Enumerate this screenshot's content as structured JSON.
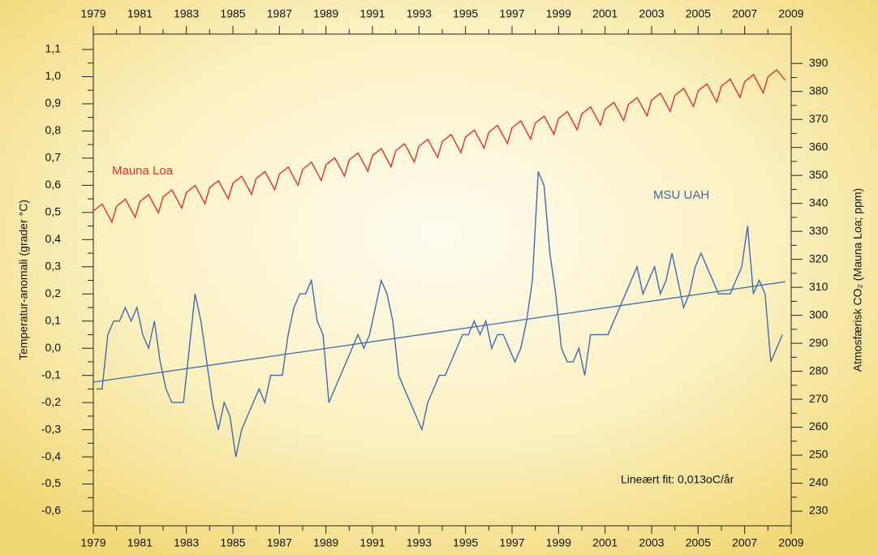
{
  "chart_data": {
    "type": "line",
    "xlim": [
      1979,
      2009
    ],
    "xticks": [
      1979,
      1981,
      1983,
      1985,
      1987,
      1989,
      1991,
      1993,
      1995,
      1997,
      1999,
      2001,
      2003,
      2005,
      2007,
      2009
    ],
    "ylim": [
      -0.6,
      1.1
    ],
    "yticks": [
      {
        "value": -0.6,
        "label": "-0,6"
      },
      {
        "value": -0.5,
        "label": "-0,5"
      },
      {
        "value": -0.4,
        "label": "-0,4"
      },
      {
        "value": -0.3,
        "label": "-0,3"
      },
      {
        "value": -0.2,
        "label": "-0,2"
      },
      {
        "value": -0.1,
        "label": "-0,1"
      },
      {
        "value": 0,
        "label": "0,0"
      },
      {
        "value": 0.1,
        "label": "0,1"
      },
      {
        "value": 0.2,
        "label": "0,2"
      },
      {
        "value": 0.3,
        "label": "0,3"
      },
      {
        "value": 0.4,
        "label": "0,4"
      },
      {
        "value": 0.5,
        "label": "0,5"
      },
      {
        "value": 0.6,
        "label": "0,6"
      },
      {
        "value": 0.7,
        "label": "0,7"
      },
      {
        "value": 0.8,
        "label": "0,8"
      },
      {
        "value": 0.9,
        "label": "0,9"
      },
      {
        "value": 1.0,
        "label": "1,0"
      },
      {
        "value": 1.1,
        "label": "1,1"
      }
    ],
    "y2lim": [
      230,
      395
    ],
    "y2ticks": [
      230,
      240,
      250,
      260,
      270,
      280,
      290,
      300,
      310,
      320,
      330,
      340,
      350,
      360,
      370,
      380,
      390
    ],
    "ylabel": "Temperatur-anomali (grader °C)",
    "y2label": "Atmosfærisk CO₂ (Mauna Loa; ppm)",
    "annotation": "Lineært fit: 0,013oC/år",
    "series": [
      {
        "name": "Mauna Loa",
        "color": "#e03226",
        "axis": "y2",
        "x": [
          1979,
          1979.38,
          1979.8,
          1980,
          1980.38,
          1980.8,
          1981,
          1981.38,
          1981.8,
          1982,
          1982.38,
          1982.8,
          1983,
          1983.38,
          1983.8,
          1984,
          1984.38,
          1984.8,
          1985,
          1985.38,
          1985.8,
          1986,
          1986.38,
          1986.8,
          1987,
          1987.38,
          1987.8,
          1988,
          1988.38,
          1988.8,
          1989,
          1989.38,
          1989.8,
          1990,
          1990.38,
          1990.8,
          1991,
          1991.38,
          1991.8,
          1992,
          1992.38,
          1992.8,
          1993,
          1993.38,
          1993.8,
          1994,
          1994.38,
          1994.8,
          1995,
          1995.38,
          1995.8,
          1996,
          1996.38,
          1996.8,
          1997,
          1997.38,
          1997.8,
          1998,
          1998.38,
          1998.8,
          1999,
          1999.38,
          1999.8,
          2000,
          2000.38,
          2000.8,
          2001,
          2001.38,
          2001.8,
          2002,
          2002.38,
          2002.8,
          2003,
          2003.38,
          2003.8,
          2004,
          2004.38,
          2004.8,
          2005,
          2005.38,
          2005.8,
          2006,
          2006.38,
          2006.8,
          2007,
          2007.38,
          2007.8,
          2008,
          2008.38,
          2008.75
        ],
        "values": [
          337.3,
          339.8,
          333.3,
          339.0,
          341.5,
          335.0,
          340.6,
          343.1,
          336.6,
          342.3,
          344.8,
          338.3,
          343.9,
          346.4,
          339.9,
          345.6,
          348.1,
          341.6,
          347.2,
          349.7,
          343.2,
          348.9,
          351.4,
          344.9,
          350.5,
          353.0,
          346.5,
          352.2,
          354.7,
          348.2,
          353.8,
          356.3,
          349.8,
          355.5,
          358.0,
          351.5,
          357.1,
          359.6,
          353.1,
          358.8,
          361.3,
          354.8,
          360.4,
          362.9,
          356.4,
          362.1,
          364.6,
          358.1,
          363.7,
          366.2,
          359.7,
          365.4,
          367.9,
          361.4,
          367.0,
          369.5,
          363.0,
          368.7,
          371.2,
          364.7,
          370.3,
          372.8,
          366.3,
          372.0,
          374.5,
          368.0,
          373.6,
          376.1,
          369.6,
          375.3,
          377.8,
          371.3,
          376.9,
          379.4,
          372.9,
          378.6,
          381.1,
          374.6,
          380.2,
          382.7,
          376.2,
          381.9,
          384.4,
          377.9,
          383.5,
          386.0,
          379.5,
          385.2,
          387.7,
          384.0
        ]
      },
      {
        "name": "MSU UAH",
        "color": "#3d6cb0",
        "axis": "y",
        "x": [
          1979.125,
          1979.375,
          1979.625,
          1979.875,
          1980.125,
          1980.375,
          1980.625,
          1980.875,
          1981.125,
          1981.375,
          1981.625,
          1981.875,
          1982.125,
          1982.375,
          1982.625,
          1982.875,
          1983.125,
          1983.375,
          1983.625,
          1983.875,
          1984.125,
          1984.375,
          1984.625,
          1984.875,
          1985.125,
          1985.375,
          1985.625,
          1985.875,
          1986.125,
          1986.375,
          1986.625,
          1986.875,
          1987.125,
          1987.375,
          1987.625,
          1987.875,
          1988.125,
          1988.375,
          1988.625,
          1988.875,
          1989.125,
          1989.375,
          1989.625,
          1989.875,
          1990.125,
          1990.375,
          1990.625,
          1990.875,
          1991.125,
          1991.375,
          1991.625,
          1991.875,
          1992.125,
          1992.375,
          1992.625,
          1992.875,
          1993.125,
          1993.375,
          1993.625,
          1993.875,
          1994.125,
          1994.375,
          1994.625,
          1994.875,
          1995.125,
          1995.375,
          1995.625,
          1995.875,
          1996.125,
          1996.375,
          1996.625,
          1996.875,
          1997.125,
          1997.375,
          1997.625,
          1997.875,
          1998.125,
          1998.375,
          1998.625,
          1998.875,
          1999.125,
          1999.375,
          1999.625,
          1999.875,
          2000.125,
          2000.375,
          2000.625,
          2000.875,
          2001.125,
          2001.375,
          2001.625,
          2001.875,
          2002.125,
          2002.375,
          2002.625,
          2002.875,
          2003.125,
          2003.375,
          2003.625,
          2003.875,
          2004.125,
          2004.375,
          2004.625,
          2004.875,
          2005.125,
          2005.375,
          2005.625,
          2005.875,
          2006.125,
          2006.375,
          2006.625,
          2006.875,
          2007.125,
          2007.375,
          2007.625,
          2007.875,
          2008.125,
          2008.375,
          2008.625
        ],
        "values": [
          -0.15,
          -0.15,
          0.05,
          0.1,
          0.1,
          0.15,
          0.1,
          0.15,
          0.05,
          0.0,
          0.1,
          -0.05,
          -0.15,
          -0.2,
          -0.2,
          -0.2,
          0.0,
          0.2,
          0.1,
          -0.05,
          -0.2,
          -0.3,
          -0.2,
          -0.25,
          -0.4,
          -0.3,
          -0.25,
          -0.2,
          -0.15,
          -0.2,
          -0.1,
          -0.1,
          -0.1,
          0.05,
          0.15,
          0.2,
          0.2,
          0.25,
          0.1,
          0.05,
          -0.2,
          -0.15,
          -0.1,
          -0.05,
          0.0,
          0.05,
          0.0,
          0.05,
          0.15,
          0.25,
          0.2,
          0.1,
          -0.1,
          -0.15,
          -0.2,
          -0.25,
          -0.3,
          -0.2,
          -0.15,
          -0.1,
          -0.1,
          -0.05,
          0.0,
          0.05,
          0.05,
          0.1,
          0.05,
          0.1,
          0.0,
          0.05,
          0.05,
          0.0,
          -0.05,
          0.0,
          0.1,
          0.25,
          0.65,
          0.6,
          0.35,
          0.2,
          0.0,
          -0.05,
          -0.05,
          0.0,
          -0.1,
          0.05,
          0.05,
          0.05,
          0.05,
          0.1,
          0.15,
          0.2,
          0.25,
          0.3,
          0.2,
          0.25,
          0.3,
          0.2,
          0.25,
          0.35,
          0.25,
          0.15,
          0.2,
          0.3,
          0.35,
          0.3,
          0.25,
          0.2,
          0.2,
          0.2,
          0.25,
          0.3,
          0.45,
          0.2,
          0.25,
          0.2,
          -0.05,
          0.0,
          0.05
        ]
      }
    ],
    "trend": {
      "color": "#3d6cb0",
      "x": [
        1979,
        2008.75
      ],
      "values": [
        -0.125,
        0.245
      ]
    }
  }
}
